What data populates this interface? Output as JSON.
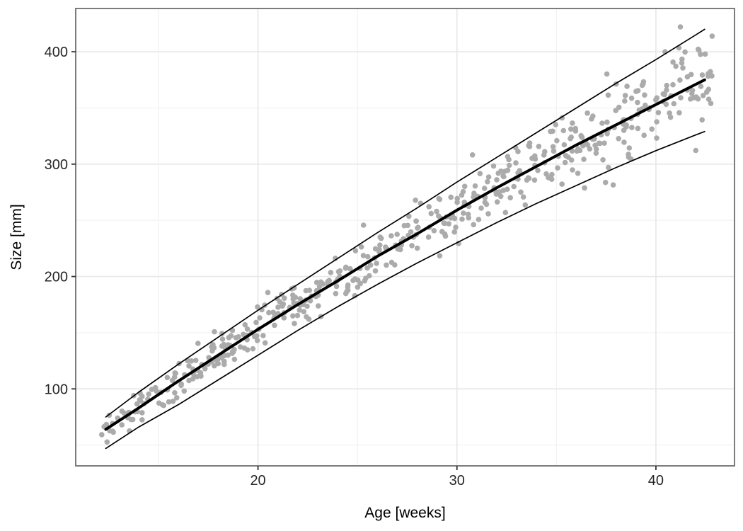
{
  "chart_data": {
    "type": "scatter",
    "title": "",
    "xlabel": "Age [weeks]",
    "ylabel": "Size [mm]",
    "xlim": [
      10.84,
      43.95
    ],
    "ylim": [
      31.5,
      438.5
    ],
    "x_ticks": [
      20,
      30,
      40
    ],
    "x_minor_ticks": [
      15,
      25,
      35
    ],
    "y_ticks": [
      100,
      200,
      300,
      400
    ],
    "y_minor_ticks": [
      50,
      150,
      250,
      350
    ],
    "grid": "major and minor gridlines, light gray, white panel (ggplot theme_bw style)",
    "legend": "none",
    "curves": {
      "description": "Thick black fitted growth (median) curve with thin upper and lower band curves; values in mm sampled at ages in weeks",
      "x": [
        12.35,
        14,
        16,
        18,
        20,
        22,
        24,
        26,
        28,
        30,
        32,
        34,
        36,
        38,
        40,
        42,
        42.45
      ],
      "center": [
        64,
        83,
        107,
        130,
        153,
        175,
        196,
        218,
        238,
        259,
        279,
        298,
        317,
        335,
        353,
        371,
        375
      ],
      "upper": [
        75,
        97,
        122,
        146,
        170,
        193,
        216,
        239,
        261,
        284,
        306,
        328,
        350,
        372,
        393,
        415,
        420
      ],
      "lower": [
        47,
        66,
        86,
        108,
        130,
        152,
        173,
        193,
        212,
        230,
        248,
        265,
        281,
        297,
        312,
        326,
        329
      ]
    },
    "scatter": {
      "description": "approx. 520 gray observation points scattered about the center curve; band lines correspond to +/-2 SD of the local spread",
      "n": 520,
      "x_min": 12.1,
      "x_max": 42.9,
      "seed": 9,
      "band_sd_span": 4
    },
    "style": {
      "background": "#ffffff",
      "point_color": "#ababab",
      "point_radius": 3.8,
      "line_color": "#000000",
      "center_line_width": 4,
      "band_line_width": 1.7,
      "grid_major_color": "#e8e8e8",
      "grid_minor_color": "#f2f2f2",
      "border_color": "#6e6e6e",
      "tick_color": "#333333",
      "tick_label_color": "#262626",
      "axis_title_color": "#000000",
      "tick_label_font_size": 20,
      "axis_title_font_size": 21
    }
  }
}
